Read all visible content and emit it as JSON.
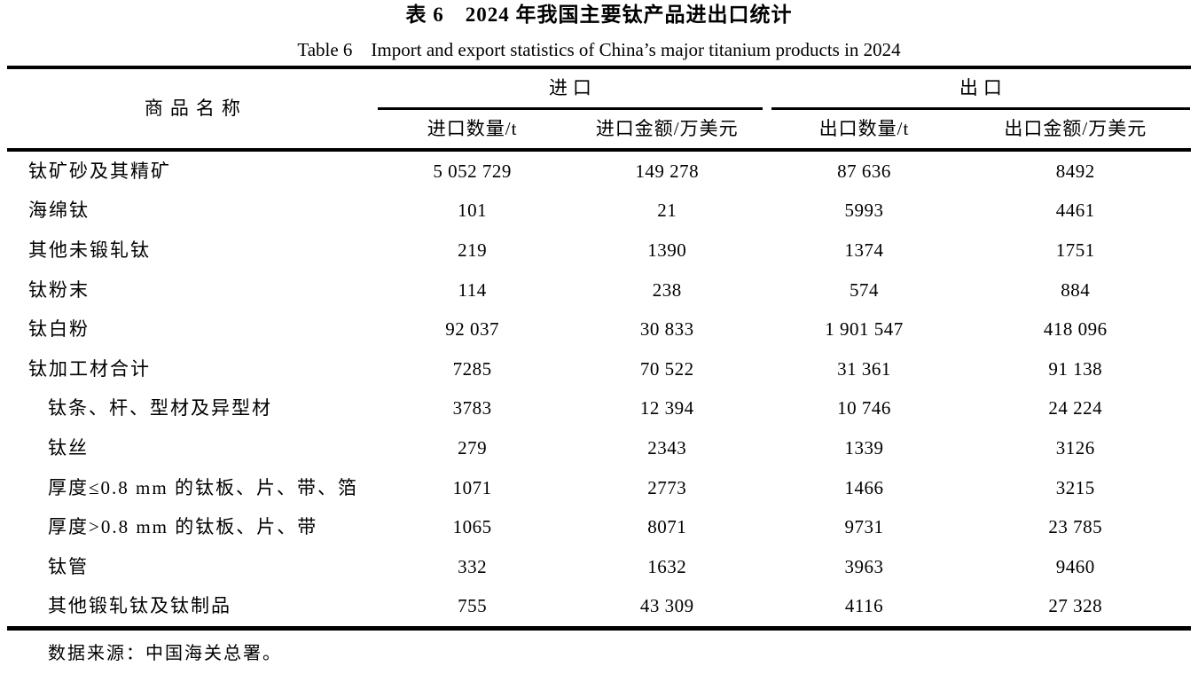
{
  "page": {
    "title_cn": "表 6　2024 年我国主要钛产品进出口统计",
    "title_en": "Table 6　Import and export statistics of China’s major titanium products in 2024",
    "source_note": "数据来源：中国海关总署。"
  },
  "table": {
    "col_name_header": "商品名称",
    "groups": [
      {
        "label": "进口",
        "subcols": [
          "进口数量/t",
          "进口金额/万美元"
        ]
      },
      {
        "label": "出口",
        "subcols": [
          "出口数量/t",
          "出口金额/万美元"
        ]
      }
    ],
    "rows": [
      {
        "name": "钛矿砂及其精矿",
        "indent": false,
        "values": [
          "5 052 729",
          "149 278",
          "87 636",
          "8492"
        ]
      },
      {
        "name": "海绵钛",
        "indent": false,
        "values": [
          "101",
          "21",
          "5993",
          "4461"
        ]
      },
      {
        "name": "其他未锻轧钛",
        "indent": false,
        "values": [
          "219",
          "1390",
          "1374",
          "1751"
        ]
      },
      {
        "name": "钛粉末",
        "indent": false,
        "values": [
          "114",
          "238",
          "574",
          "884"
        ]
      },
      {
        "name": "钛白粉",
        "indent": false,
        "values": [
          "92 037",
          "30 833",
          "1 901 547",
          "418 096"
        ]
      },
      {
        "name": "钛加工材合计",
        "indent": false,
        "values": [
          "7285",
          "70 522",
          "31 361",
          "91 138"
        ]
      },
      {
        "name": "钛条、杆、型材及异型材",
        "indent": true,
        "values": [
          "3783",
          "12 394",
          "10 746",
          "24 224"
        ]
      },
      {
        "name": "钛丝",
        "indent": true,
        "values": [
          "279",
          "2343",
          "1339",
          "3126"
        ]
      },
      {
        "name": "厚度≤0.8 mm 的钛板、片、带、箔",
        "indent": true,
        "values": [
          "1071",
          "2773",
          "1466",
          "3215"
        ]
      },
      {
        "name": "厚度>0.8 mm 的钛板、片、带",
        "indent": true,
        "values": [
          "1065",
          "8071",
          "9731",
          "23 785"
        ]
      },
      {
        "name": "钛管",
        "indent": true,
        "values": [
          "332",
          "1632",
          "3963",
          "9460"
        ]
      },
      {
        "name": "其他锻轧钛及钛制品",
        "indent": true,
        "values": [
          "755",
          "43 309",
          "4116",
          "27 328"
        ]
      }
    ]
  }
}
